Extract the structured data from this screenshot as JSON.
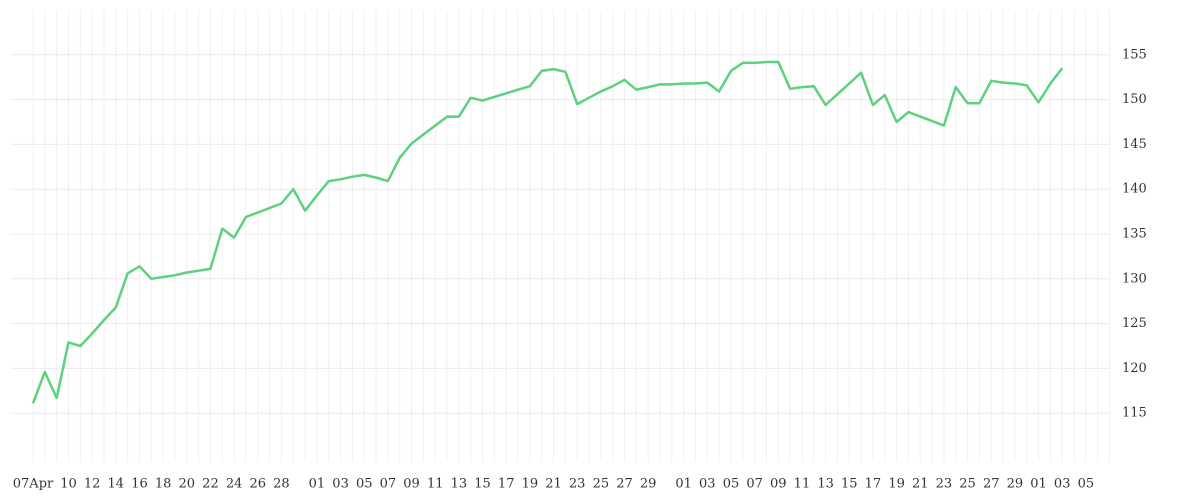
{
  "chart_data": {
    "type": "line",
    "categories": [
      "07Apr",
      null,
      null,
      "10",
      null,
      "12",
      null,
      "14",
      null,
      "16",
      null,
      "18",
      null,
      "20",
      null,
      "22",
      null,
      "24",
      null,
      "26",
      null,
      "28",
      null,
      null,
      "01",
      null,
      "03",
      null,
      "05",
      null,
      "07",
      null,
      "09",
      null,
      "11",
      null,
      "13",
      null,
      "15",
      null,
      "17",
      null,
      "19",
      null,
      "21",
      null,
      "23",
      null,
      "25",
      null,
      "27",
      null,
      "29",
      null,
      null,
      "01",
      null,
      "03",
      null,
      "05",
      null,
      "07",
      null,
      "09",
      null,
      "11",
      null,
      "13",
      null,
      "15",
      null,
      "17",
      null,
      "19",
      null,
      "21",
      null,
      "23",
      null,
      "25",
      null,
      "27",
      null,
      "29",
      null,
      "01",
      null,
      "03",
      null,
      "05",
      null,
      null
    ],
    "values": [
      116.1,
      119.6,
      116.7,
      122.9,
      122.5,
      123.9,
      125.4,
      126.8,
      130.6,
      131.4,
      130.0,
      130.2,
      130.4,
      130.7,
      130.9,
      131.1,
      135.6,
      134.6,
      136.9,
      137.4,
      137.9,
      138.4,
      140.0,
      137.6,
      139.3,
      140.9,
      141.1,
      141.4,
      141.6,
      141.3,
      140.9,
      143.5,
      145.1,
      146.1,
      147.1,
      148.1,
      148.1,
      150.2,
      149.9,
      150.3,
      150.7,
      151.1,
      151.5,
      153.2,
      153.4,
      153.1,
      149.5,
      150.2,
      150.9,
      151.5,
      152.2,
      151.1,
      151.4,
      151.7,
      151.7,
      151.8,
      151.8,
      151.9,
      150.9,
      153.2,
      154.1,
      154.1,
      154.2,
      154.2,
      151.2,
      151.4,
      151.5,
      149.4,
      150.6,
      151.8,
      153.0,
      149.4,
      150.5,
      147.5,
      148.6,
      148.1,
      147.6,
      147.1,
      151.4,
      149.6,
      149.6,
      152.1,
      151.9,
      151.8,
      151.6,
      149.7,
      151.8,
      153.5,
      null,
      null,
      null,
      null
    ],
    "color": "#5cd17f",
    "ylim": [
      110,
      160
    ],
    "yticks": [
      115,
      120,
      125,
      130,
      135,
      140,
      145,
      150,
      155
    ],
    "grid": true
  }
}
